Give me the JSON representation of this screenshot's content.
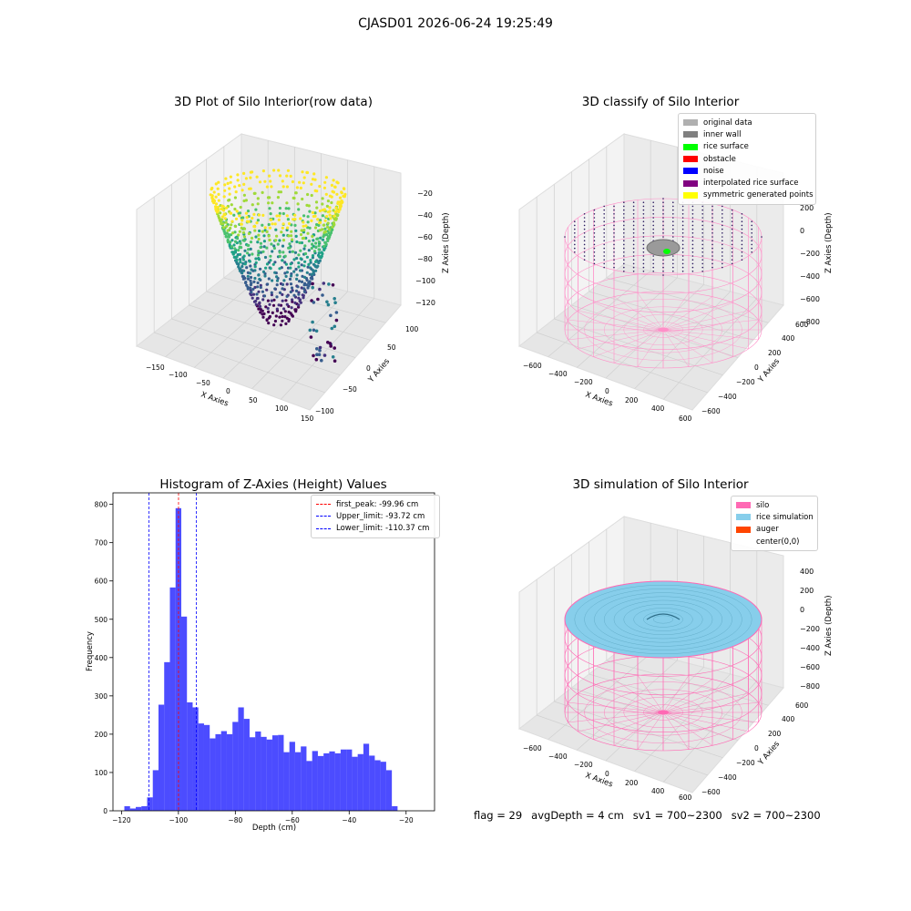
{
  "suptitle": "CJASD01 2026-06-24 19:25:49",
  "footer": {
    "flag": "flag = 29",
    "avg": "avgDepth = 4 cm",
    "sv1": "sv1 = 700~2300",
    "sv2": "sv2 = 700~2300"
  },
  "chart_data": [
    {
      "type": "scatter",
      "projection": "3d",
      "title": "3D Plot of Silo Interior(row data)",
      "xlabel": "X Axies",
      "ylabel": "Y Axies",
      "zlabel": "Z Axies (Depth)",
      "xticks": [
        "−150",
        "−100",
        "−50",
        "0",
        "50",
        "100",
        "150"
      ],
      "yticks": [
        "−100",
        "−50",
        "0",
        "50",
        "100"
      ],
      "zticks": [
        "−20",
        "−40",
        "−60",
        "−80",
        "−100",
        "−120"
      ],
      "zlim": [
        -125,
        -15
      ],
      "colormap": "viridis",
      "grid": true
    },
    {
      "type": "scatter",
      "projection": "3d",
      "title": "3D classify of Silo Interior",
      "xlabel": "X Axies",
      "ylabel": "Y Axies",
      "zlabel": "Z Axies (Depth)",
      "xticks": [
        "−600",
        "−400",
        "−200",
        "0",
        "200",
        "400",
        "600"
      ],
      "yticks": [
        "−600",
        "−400",
        "−200",
        "0",
        "200",
        "400",
        "600"
      ],
      "zticks": [
        "200",
        "0",
        "−200",
        "−400",
        "−600",
        "−800"
      ],
      "legend_position": "top-right",
      "legend": [
        {
          "label": "original data",
          "color": "#b0b0b0"
        },
        {
          "label": "inner wall",
          "color": "#808080"
        },
        {
          "label": "rice surface",
          "color": "#00ff00"
        },
        {
          "label": "obstacle",
          "color": "#ff0000"
        },
        {
          "label": "noise",
          "color": "#0000ff"
        },
        {
          "label": "interpolated rice surface",
          "color": "#800080"
        },
        {
          "label": "symmetric generated points",
          "color": "#ffff00"
        }
      ],
      "grid": true
    },
    {
      "type": "bar",
      "subtype": "histogram",
      "title": "Histogram of Z-Axies (Height) Values",
      "xlabel": "Depth (cm)",
      "ylabel": "Frequency",
      "xlim": [
        -123,
        -10
      ],
      "ylim": [
        0,
        830
      ],
      "xticks": [
        -120,
        -100,
        -80,
        -60,
        -40,
        -20
      ],
      "yticks": [
        0,
        100,
        200,
        300,
        400,
        500,
        600,
        700,
        800
      ],
      "bar_color": "#0000ff",
      "bin_width": 2,
      "bin_start": -119,
      "values": [
        12,
        6,
        10,
        12,
        35,
        106,
        277,
        388,
        583,
        790,
        507,
        283,
        270,
        228,
        224,
        189,
        200,
        208,
        200,
        232,
        270,
        240,
        192,
        207,
        193,
        186,
        197,
        198,
        153,
        180,
        153,
        168,
        130,
        156,
        143,
        150,
        155,
        150,
        160,
        160,
        141,
        148,
        175,
        144,
        132,
        128,
        106,
        12
      ],
      "reference_lines": [
        {
          "label": "first_peak: -99.96 cm",
          "x": -99.96,
          "color": "#ff0000"
        },
        {
          "label": "Upper_limit: -93.72 cm",
          "x": -93.72,
          "color": "#0000ff"
        },
        {
          "label": "Lower_limit: -110.37 cm",
          "x": -110.37,
          "color": "#0000ff"
        }
      ],
      "legend_position": "top-right"
    },
    {
      "type": "surface",
      "projection": "3d",
      "title": "3D simulation of Silo Interior",
      "xlabel": "X Axies",
      "ylabel": "Y Axies",
      "zlabel": "Z Axies (Depth)",
      "xticks": [
        "−600",
        "−400",
        "−200",
        "0",
        "200",
        "400",
        "600"
      ],
      "yticks": [
        "−600",
        "−400",
        "−200",
        "0",
        "200",
        "400",
        "600"
      ],
      "zticks": [
        "400",
        "200",
        "0",
        "−200",
        "−400",
        "−600",
        "−800"
      ],
      "legend_position": "top-right",
      "legend": [
        {
          "label": "silo",
          "color": "#ff69b4"
        },
        {
          "label": "rice simulation",
          "color": "#87ceeb"
        },
        {
          "label": "auger",
          "color": "#ff4500"
        },
        {
          "label": "center(0,0)",
          "color": ""
        }
      ],
      "grid": true
    }
  ]
}
